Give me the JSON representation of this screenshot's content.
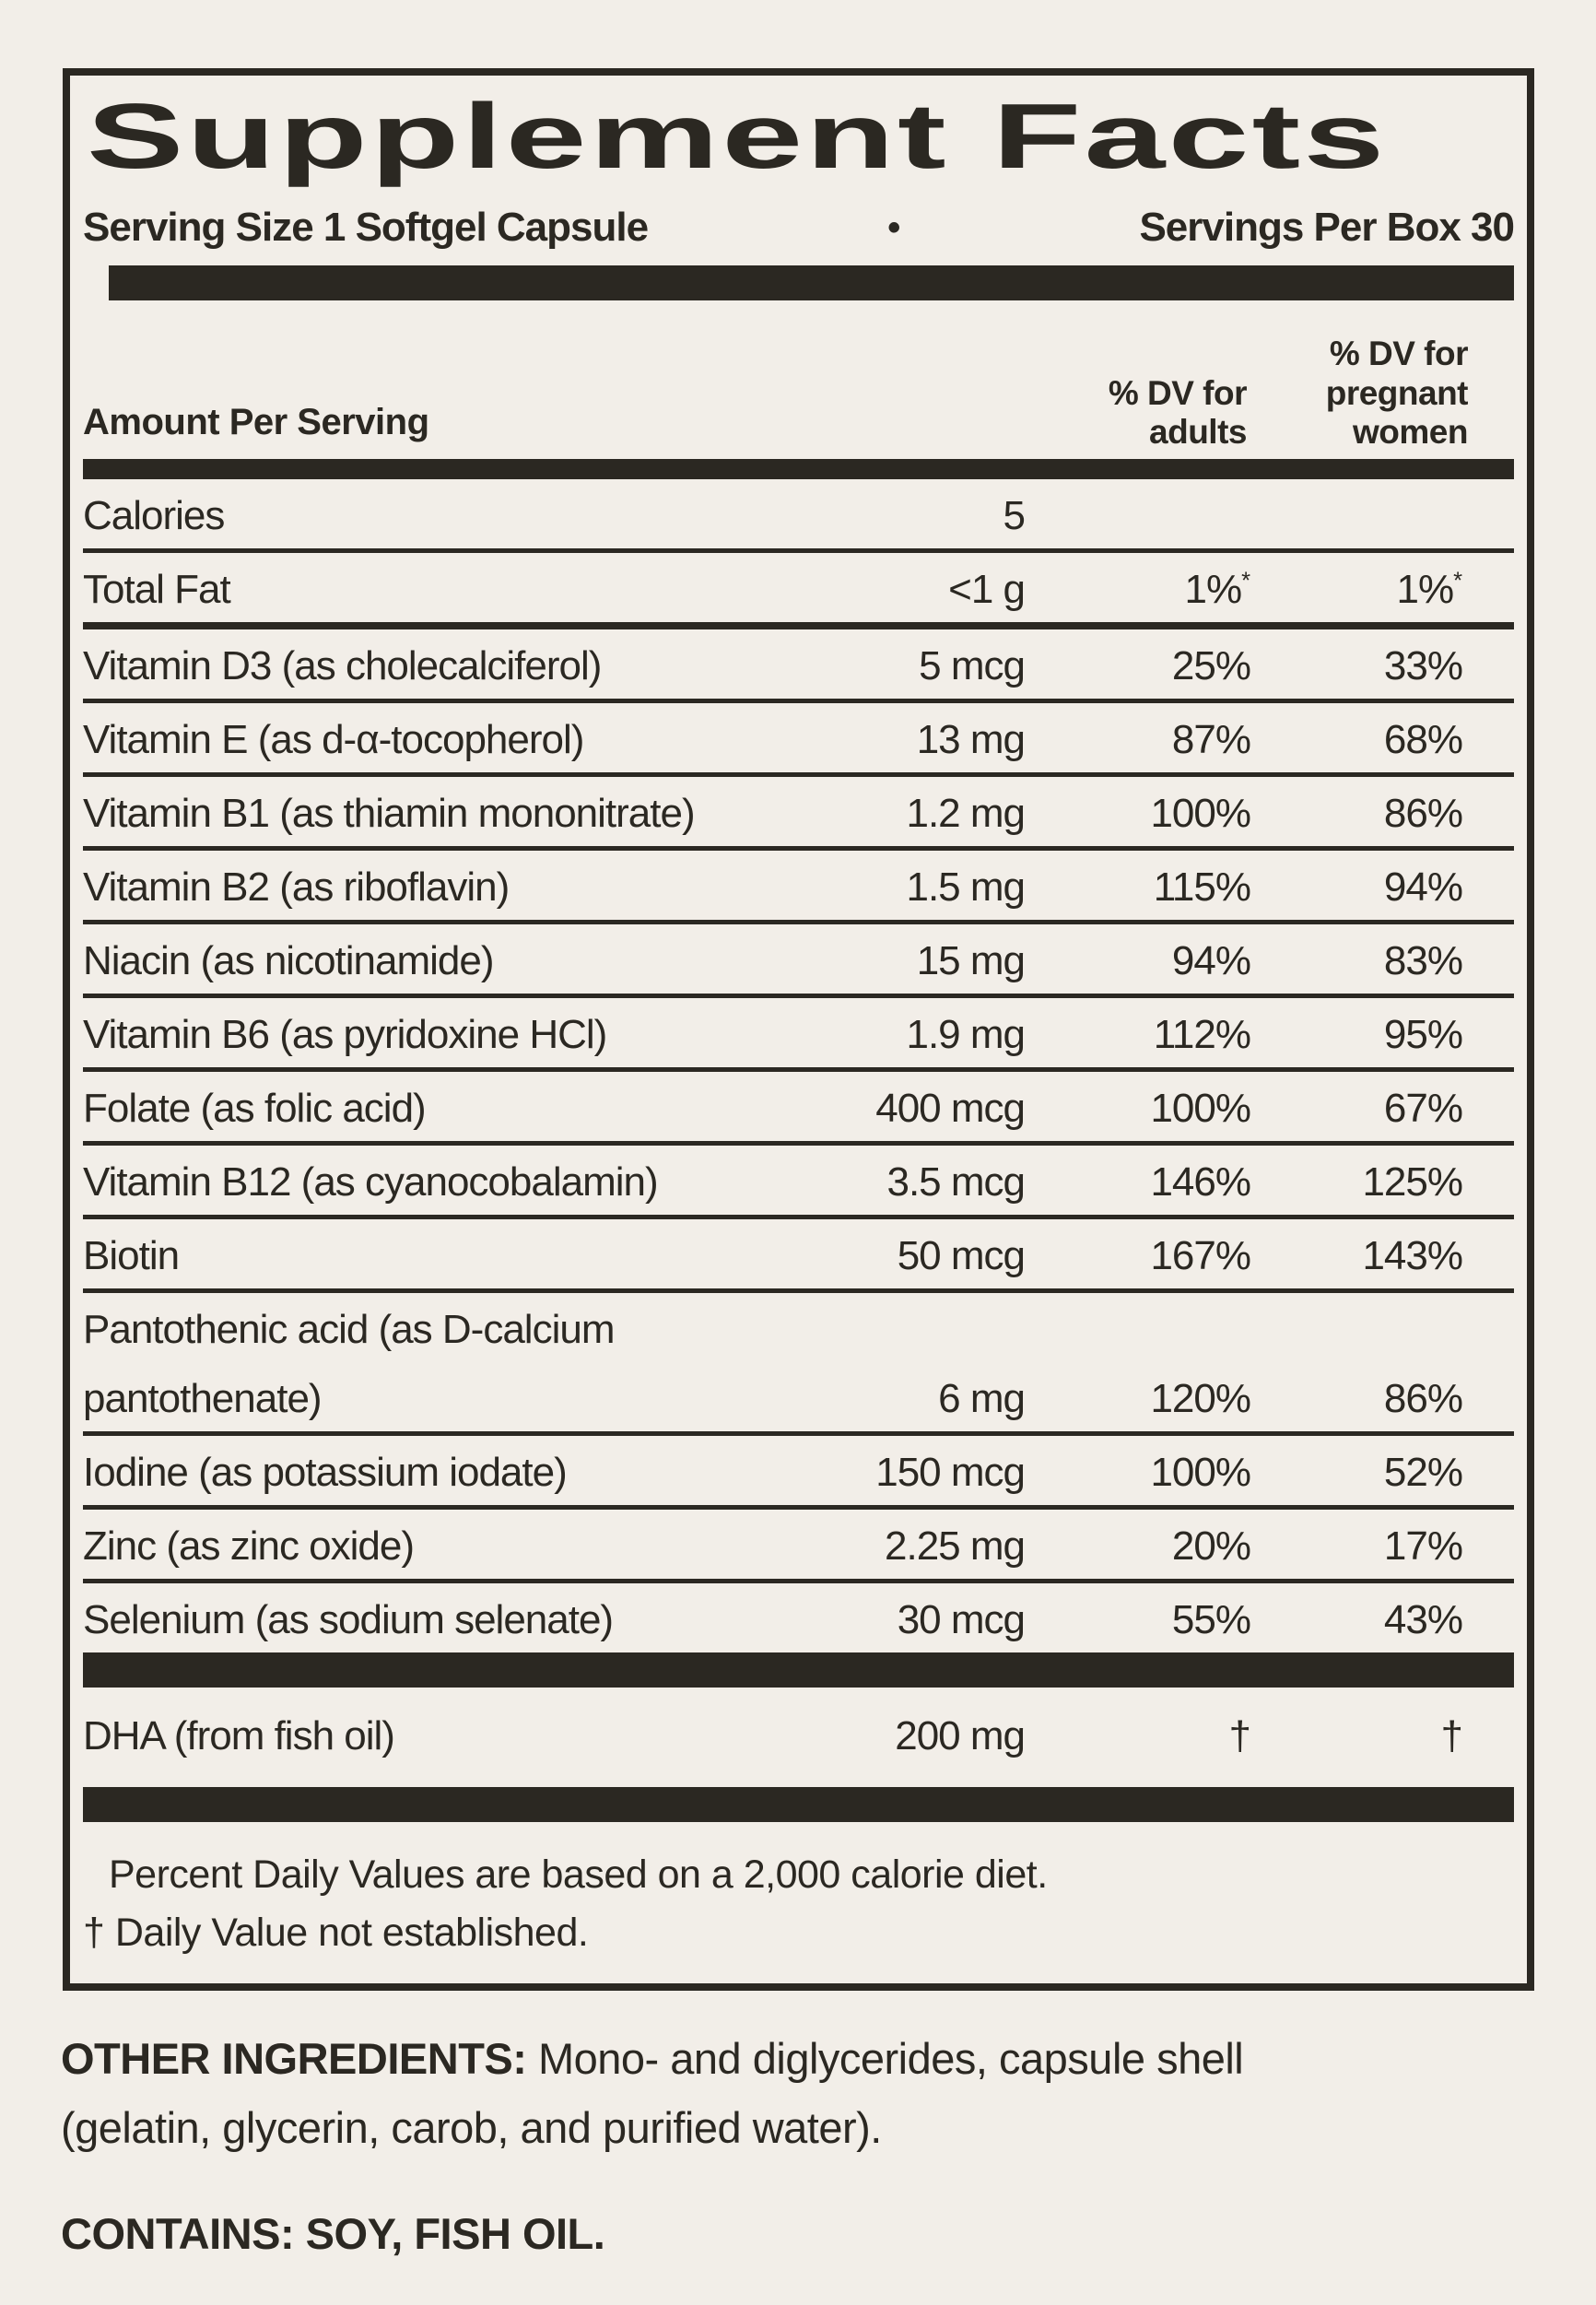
{
  "colors": {
    "background": "#f2eee8",
    "ink": "#2b2822"
  },
  "header": {
    "title": "Supplement Facts",
    "serving_size": "Serving Size 1 Softgel Capsule",
    "bullet": "•",
    "servings_per_box": "Servings Per Box 30"
  },
  "columns": {
    "amount_label": "Amount Per Serving",
    "dv_adults_label": "% DV for\nadults",
    "dv_pregnant_label": "% DV for\npregnant\nwomen"
  },
  "table": {
    "items": [
      {
        "type": "row",
        "label": "Calories",
        "amount": "5",
        "adults": "",
        "pregnant": "",
        "sep": "thin"
      },
      {
        "type": "row",
        "label": "Total Fat",
        "amount": "<1 g",
        "adults": "1%",
        "adults_note": "*",
        "pregnant": "1%",
        "pregnant_note": "*",
        "sep": "thick"
      },
      {
        "type": "row",
        "label": "Vitamin D3 (as cholecalciferol)",
        "amount": "5 mcg",
        "adults": "25%",
        "pregnant": "33%",
        "sep": "thin"
      },
      {
        "type": "row",
        "label": "Vitamin E (as d-α-tocopherol)",
        "amount": "13 mg",
        "adults": "87%",
        "pregnant": "68%",
        "sep": "thin"
      },
      {
        "type": "row",
        "label": "Vitamin B1 (as thiamin mononitrate)",
        "amount": "1.2 mg",
        "adults": "100%",
        "pregnant": "86%",
        "sep": "thin"
      },
      {
        "type": "row",
        "label": "Vitamin B2 (as riboflavin)",
        "amount": "1.5 mg",
        "adults": "115%",
        "pregnant": "94%",
        "sep": "thin"
      },
      {
        "type": "row",
        "label": "Niacin (as nicotinamide)",
        "amount": "15 mg",
        "adults": "94%",
        "pregnant": "83%",
        "sep": "thin"
      },
      {
        "type": "row",
        "label": "Vitamin B6 (as pyridoxine HCl)",
        "amount": "1.9 mg",
        "adults": "112%",
        "pregnant": "95%",
        "sep": "thin"
      },
      {
        "type": "row",
        "label": "Folate (as folic acid)",
        "amount": "400 mcg",
        "adults": "100%",
        "pregnant": "67%",
        "sep": "thin"
      },
      {
        "type": "row",
        "label": "Vitamin B12 (as cyanocobalamin)",
        "amount": "3.5 mcg",
        "adults": "146%",
        "pregnant": "125%",
        "sep": "thin"
      },
      {
        "type": "row",
        "label": "Biotin",
        "amount": "50 mcg",
        "adults": "167%",
        "pregnant": "143%",
        "sep": "thin"
      },
      {
        "type": "row",
        "label": "Pantothenic acid (as D-calcium",
        "amount": "",
        "adults": "",
        "pregnant": "",
        "sep": "none"
      },
      {
        "type": "row",
        "label": "pantothenate)",
        "amount": "6 mg",
        "adults": "120%",
        "pregnant": "86%",
        "sep": "thin"
      },
      {
        "type": "row",
        "label": "Iodine (as potassium iodate)",
        "amount": "150 mcg",
        "adults": "100%",
        "pregnant": "52%",
        "sep": "thin"
      },
      {
        "type": "row",
        "label": "Zinc (as zinc oxide)",
        "amount": "2.25 mg",
        "adults": "20%",
        "pregnant": "17%",
        "sep": "thin"
      },
      {
        "type": "row",
        "label": "Selenium (as sodium selenate)",
        "amount": "30 mcg",
        "adults": "55%",
        "pregnant": "43%",
        "sep": "none"
      },
      {
        "type": "bar"
      },
      {
        "type": "row",
        "label": "DHA (from fish oil)",
        "amount": "200 mg",
        "adults": "†",
        "pregnant": "†",
        "sep": "none",
        "tall": true
      },
      {
        "type": "bar"
      }
    ]
  },
  "footnotes": {
    "percent_dv": "Percent Daily Values are based on a 2,000 calorie diet.",
    "dagger": "† Daily Value not established."
  },
  "other_ingredients": {
    "label": "OTHER INGREDIENTS:",
    "text": " Mono- and diglycerides, capsule shell\n(gelatin, glycerin, carob, and purified water)."
  },
  "contains": "CONTAINS: SOY, FISH OIL."
}
